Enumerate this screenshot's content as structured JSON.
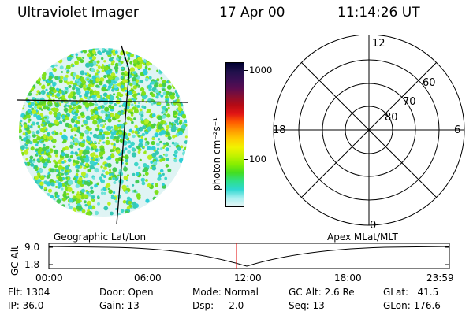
{
  "header": {
    "instrument": "Ultraviolet Imager",
    "date": "17 Apr 00",
    "time": "11:14:26 UT"
  },
  "colorbar": {
    "unit_label": "photon cm⁻²s⁻¹",
    "ticks": [
      "1000",
      "100"
    ],
    "colors": [
      "#000030",
      "#20104a",
      "#3a0f54",
      "#5a0c50",
      "#880e30",
      "#b50a14",
      "#e01414",
      "#ff5a00",
      "#ff9a00",
      "#ffcc00",
      "#f2f200",
      "#c2f200",
      "#88ee00",
      "#44dd20",
      "#2ee08a",
      "#2ed8d0",
      "#a8f0f0",
      "#e8f6f6"
    ]
  },
  "polar_plot": {
    "hour_labels": [
      "12",
      "18",
      "6",
      "0"
    ],
    "lat_labels": [
      "60",
      "70",
      "80"
    ]
  },
  "timeline": {
    "left_title": "Geographic Lat/Lon",
    "right_title": "Apex  MLat/MLT",
    "axis_label": "GC Alt",
    "y_ticks": [
      "9.0",
      "1.8"
    ],
    "x_ticks": [
      "00:00",
      "06:00",
      "12:00",
      "18:00",
      "23:59"
    ],
    "current_time_fraction": 0.4687,
    "marker_color": "#e00000"
  },
  "footer": {
    "flt": "Flt: 1304",
    "ip": "IP: 36.0",
    "door": "Door: Open",
    "gain": "Gain: 13",
    "mode": "Mode: Normal",
    "dsp": "Dsp:     2.0",
    "gc_alt": "GC Alt: 2.6 Re",
    "seq": "Seq: 13",
    "glat": "GLat:   41.5",
    "glon": "GLon: 176.6"
  }
}
